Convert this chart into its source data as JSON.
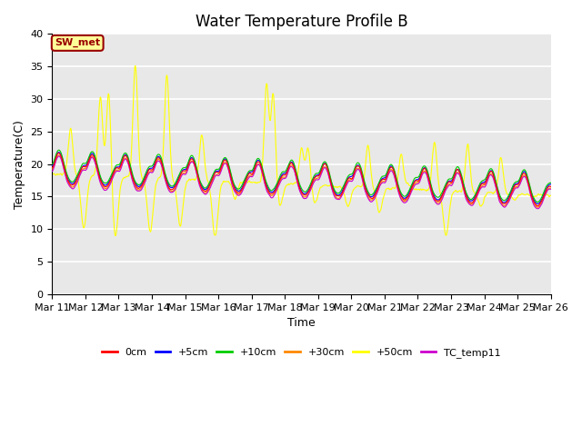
{
  "title": "Water Temperature Profile B",
  "xlabel": "Time",
  "ylabel": "Temperature(C)",
  "ylim": [
    0,
    40
  ],
  "yticks": [
    0,
    5,
    10,
    15,
    20,
    25,
    30,
    35,
    40
  ],
  "xtick_labels": [
    "Mar 11",
    "Mar 12",
    "Mar 13",
    "Mar 14",
    "Mar 15",
    "Mar 16",
    "Mar 17",
    "Mar 18",
    "Mar 19",
    "Mar 20",
    "Mar 21",
    "Mar 22",
    "Mar 23",
    "Mar 24",
    "Mar 25",
    "Mar 26"
  ],
  "series_colors": {
    "0cm": "#ff0000",
    "+5cm": "#0000ff",
    "+10cm": "#00cc00",
    "+30cm": "#ff8800",
    "+50cm": "#ffff00",
    "TC_temp11": "#cc00cc"
  },
  "annotation_text": "SW_met",
  "annotation_box_color": "#ffff99",
  "annotation_border_color": "#990000",
  "background_color": "#e8e8e8",
  "grid_color": "#ffffff",
  "title_fontsize": 12,
  "axis_fontsize": 9,
  "tick_fontsize": 8,
  "figsize": [
    6.4,
    4.8
  ],
  "dpi": 100
}
